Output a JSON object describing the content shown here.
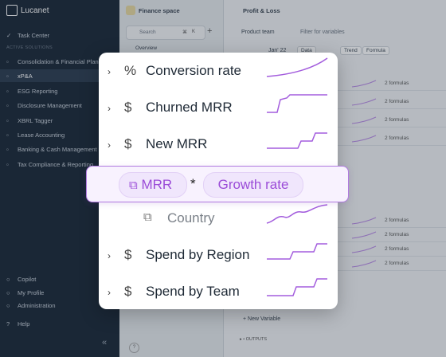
{
  "sidebar": {
    "brand": "Lucanet",
    "task_center": "Task Center",
    "section_label": "ACTIVE SOLUTIONS",
    "solutions": [
      "Consolidation & Financial Plann",
      "xP&A",
      "ESG Reporting",
      "Disclosure Management",
      "XBRL Tagger",
      "Lease Accounting",
      "Banking & Cash Management",
      "Tax Compliance & Reporting"
    ],
    "bottom": [
      "Copilot",
      "My Profile",
      "Administration"
    ],
    "help": "Help"
  },
  "space": {
    "title": "Finance space",
    "search": "Search",
    "shortcut": [
      "⌘",
      "K"
    ],
    "overview": "Overview"
  },
  "report": {
    "title": "Profit & Loss",
    "team": "Product team",
    "filter": "Filter for variables",
    "period": "Jan' 22",
    "tabs": [
      "Data",
      "Trend",
      "Formula"
    ],
    "formula_counts": [
      "2 formulas",
      "2 formulas",
      "2 formulas",
      "2 formulas",
      "2 formulas",
      "2 formulas",
      "2 formulas",
      "2 formulas"
    ],
    "new_variable": "New Variable",
    "outputs": "OUTPUTS"
  },
  "popover": {
    "rows": [
      {
        "icon": "%",
        "label": "Conversion rate"
      },
      {
        "icon": "$",
        "label": "Churned MRR"
      },
      {
        "icon": "$",
        "label": "New MRR"
      },
      {
        "icon": "$",
        "label": "Spend by Region"
      },
      {
        "icon": "$",
        "label": "Spend by Team"
      }
    ],
    "formula": {
      "left": "MRR",
      "operator": "*",
      "right": "Growth rate"
    },
    "dimension": "Country"
  }
}
